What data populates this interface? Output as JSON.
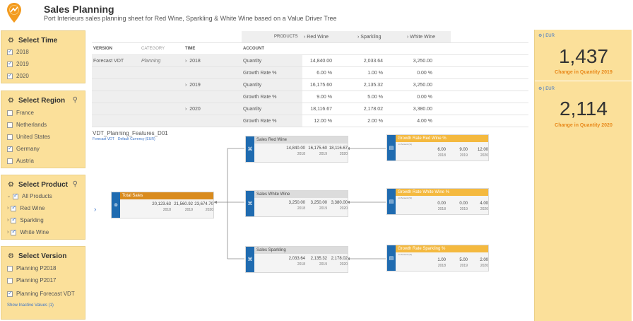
{
  "app": {
    "title": "Sales Planning",
    "subtitle": "Port Interieurs sales planning sheet for Red Wine, Sparkling & White Wine based on a Value Driver Tree"
  },
  "colors": {
    "panel": "#fbe09a",
    "accent": "#e8891b",
    "blue": "#1f6bb0",
    "link": "#3a74c9"
  },
  "filters": {
    "time": {
      "title": "Select Time",
      "options": [
        "2018",
        "2019",
        "2020"
      ]
    },
    "region": {
      "title": "Select Region",
      "options": [
        "France",
        "Netherlands",
        "United States",
        "Germany",
        "Austria"
      ]
    },
    "product": {
      "title": "Select Product",
      "all": "All Products",
      "options": [
        "Red Wine",
        "Sparkling",
        "White Wine"
      ]
    },
    "version": {
      "title": "Select Version",
      "options": [
        "Planning P2018",
        "Planning P2017",
        "Planning Forecast VDT"
      ],
      "show_inactive": "Show Inactive Values (1)"
    }
  },
  "table": {
    "products_label": "PRODUCTS",
    "product_headers": [
      "Red Wine",
      "Sparkling",
      "White Wine"
    ],
    "col_headers": {
      "version": "VERSION",
      "category": "CATEGORY",
      "time": "TIME",
      "account": "ACCOUNT"
    },
    "version": "Forecast VDT",
    "category": "Planning",
    "rows": [
      {
        "time": "2018",
        "account": "Quantity",
        "values": [
          "14,840.00",
          "2,033.64",
          "3,250.00"
        ]
      },
      {
        "time": "",
        "account": "Growth Rate %",
        "values": [
          "6.00 %",
          "1.00 %",
          "0.00 %"
        ]
      },
      {
        "time": "2019",
        "account": "Quantity",
        "values": [
          "16,175.60",
          "2,135.32",
          "3,250.00"
        ]
      },
      {
        "time": "",
        "account": "Growth Rate %",
        "values": [
          "9.00 %",
          "5.00 %",
          "0.00 %"
        ]
      },
      {
        "time": "2020",
        "account": "Quantity",
        "values": [
          "18,116.67",
          "2,178.02",
          "3,380.00"
        ]
      },
      {
        "time": "",
        "account": "Growth Rate %",
        "values": [
          "12.00 %",
          "2.00 %",
          "4.00 %"
        ]
      }
    ]
  },
  "tree": {
    "title": "VDT_Planning_Features_D01",
    "sub": [
      "Forecast VDT",
      "Default Currency (EUR)"
    ],
    "years": [
      "2018",
      "2019",
      "2020"
    ],
    "unit": "in Percent (%)",
    "total": {
      "title": "Total Sales",
      "values": [
        "20,123.63",
        "21,560.92",
        "23,674.70"
      ]
    },
    "red": {
      "title": "Sales Red Wine",
      "values": [
        "14,840.00",
        "16,175.60",
        "18,116.67"
      ]
    },
    "white": {
      "title": "Sales White Wine",
      "values": [
        "3,250.00",
        "3,250.00",
        "3,380.00"
      ]
    },
    "sparkling": {
      "title": "Sales Sparkling",
      "values": [
        "2,033.64",
        "2,135.32",
        "2,178.02"
      ]
    },
    "g_red": {
      "title": "Growth Rate Red Wine %",
      "values": [
        "6.00",
        "9.00",
        "12.00"
      ]
    },
    "g_white": {
      "title": "Growth Rate White Wine %",
      "values": [
        "0.00",
        "0.00",
        "4.00"
      ]
    },
    "g_spark": {
      "title": "Growth Rate Sparkling %",
      "values": [
        "1.00",
        "5.00",
        "2.00"
      ]
    }
  },
  "kpis": [
    {
      "currency": "EUR",
      "value": "1,437",
      "label": "Change in Quantity 2019"
    },
    {
      "currency": "EUR",
      "value": "2,114",
      "label": "Change in Quantity 2020"
    }
  ]
}
